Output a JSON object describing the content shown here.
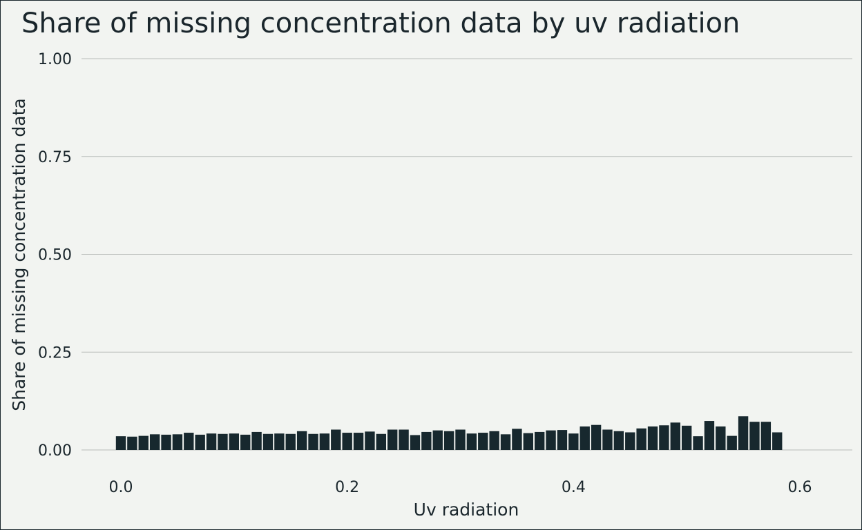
{
  "chart_data": {
    "type": "bar",
    "title": "Share of missing concentration data by uv radiation",
    "xlabel": "Uv radiation",
    "ylabel": "Share of missing concentration data",
    "xlim": [
      -0.0125,
      0.6375
    ],
    "ylim": [
      0,
      1
    ],
    "x_ticks": [
      0.0,
      0.2,
      0.4,
      0.6
    ],
    "x_tick_labels": [
      "0.0",
      "0.2",
      "0.4",
      "0.6"
    ],
    "y_ticks": [
      0,
      0.25,
      0.5,
      0.75,
      1.0
    ],
    "y_tick_labels": [
      "0.00",
      "0.25",
      "0.50",
      "0.75",
      "1.00"
    ],
    "grid": "horizontal",
    "bin_width": 0.01,
    "bar_color": "#17282e",
    "x": [
      0.0,
      0.01,
      0.02,
      0.03,
      0.04,
      0.05,
      0.06,
      0.07,
      0.08,
      0.09,
      0.1,
      0.11,
      0.12,
      0.13,
      0.14,
      0.15,
      0.16,
      0.17,
      0.18,
      0.19,
      0.2,
      0.21,
      0.22,
      0.23,
      0.24,
      0.25,
      0.26,
      0.27,
      0.28,
      0.29,
      0.3,
      0.31,
      0.32,
      0.33,
      0.34,
      0.35,
      0.36,
      0.37,
      0.38,
      0.39,
      0.4,
      0.41,
      0.42,
      0.43,
      0.44,
      0.45,
      0.46,
      0.47,
      0.48,
      0.49,
      0.5,
      0.51,
      0.52,
      0.53,
      0.54,
      0.55,
      0.56,
      0.57,
      0.58
    ],
    "values": [
      0.035,
      0.034,
      0.036,
      0.04,
      0.039,
      0.04,
      0.044,
      0.039,
      0.042,
      0.041,
      0.042,
      0.039,
      0.046,
      0.041,
      0.042,
      0.041,
      0.048,
      0.041,
      0.042,
      0.052,
      0.044,
      0.044,
      0.047,
      0.041,
      0.052,
      0.052,
      0.038,
      0.046,
      0.05,
      0.048,
      0.052,
      0.042,
      0.044,
      0.048,
      0.04,
      0.054,
      0.043,
      0.046,
      0.05,
      0.051,
      0.042,
      0.06,
      0.064,
      0.052,
      0.048,
      0.045,
      0.055,
      0.06,
      0.063,
      0.07,
      0.062,
      0.035,
      0.074,
      0.06,
      0.036,
      0.086,
      0.072,
      0.072,
      0.045
    ]
  }
}
